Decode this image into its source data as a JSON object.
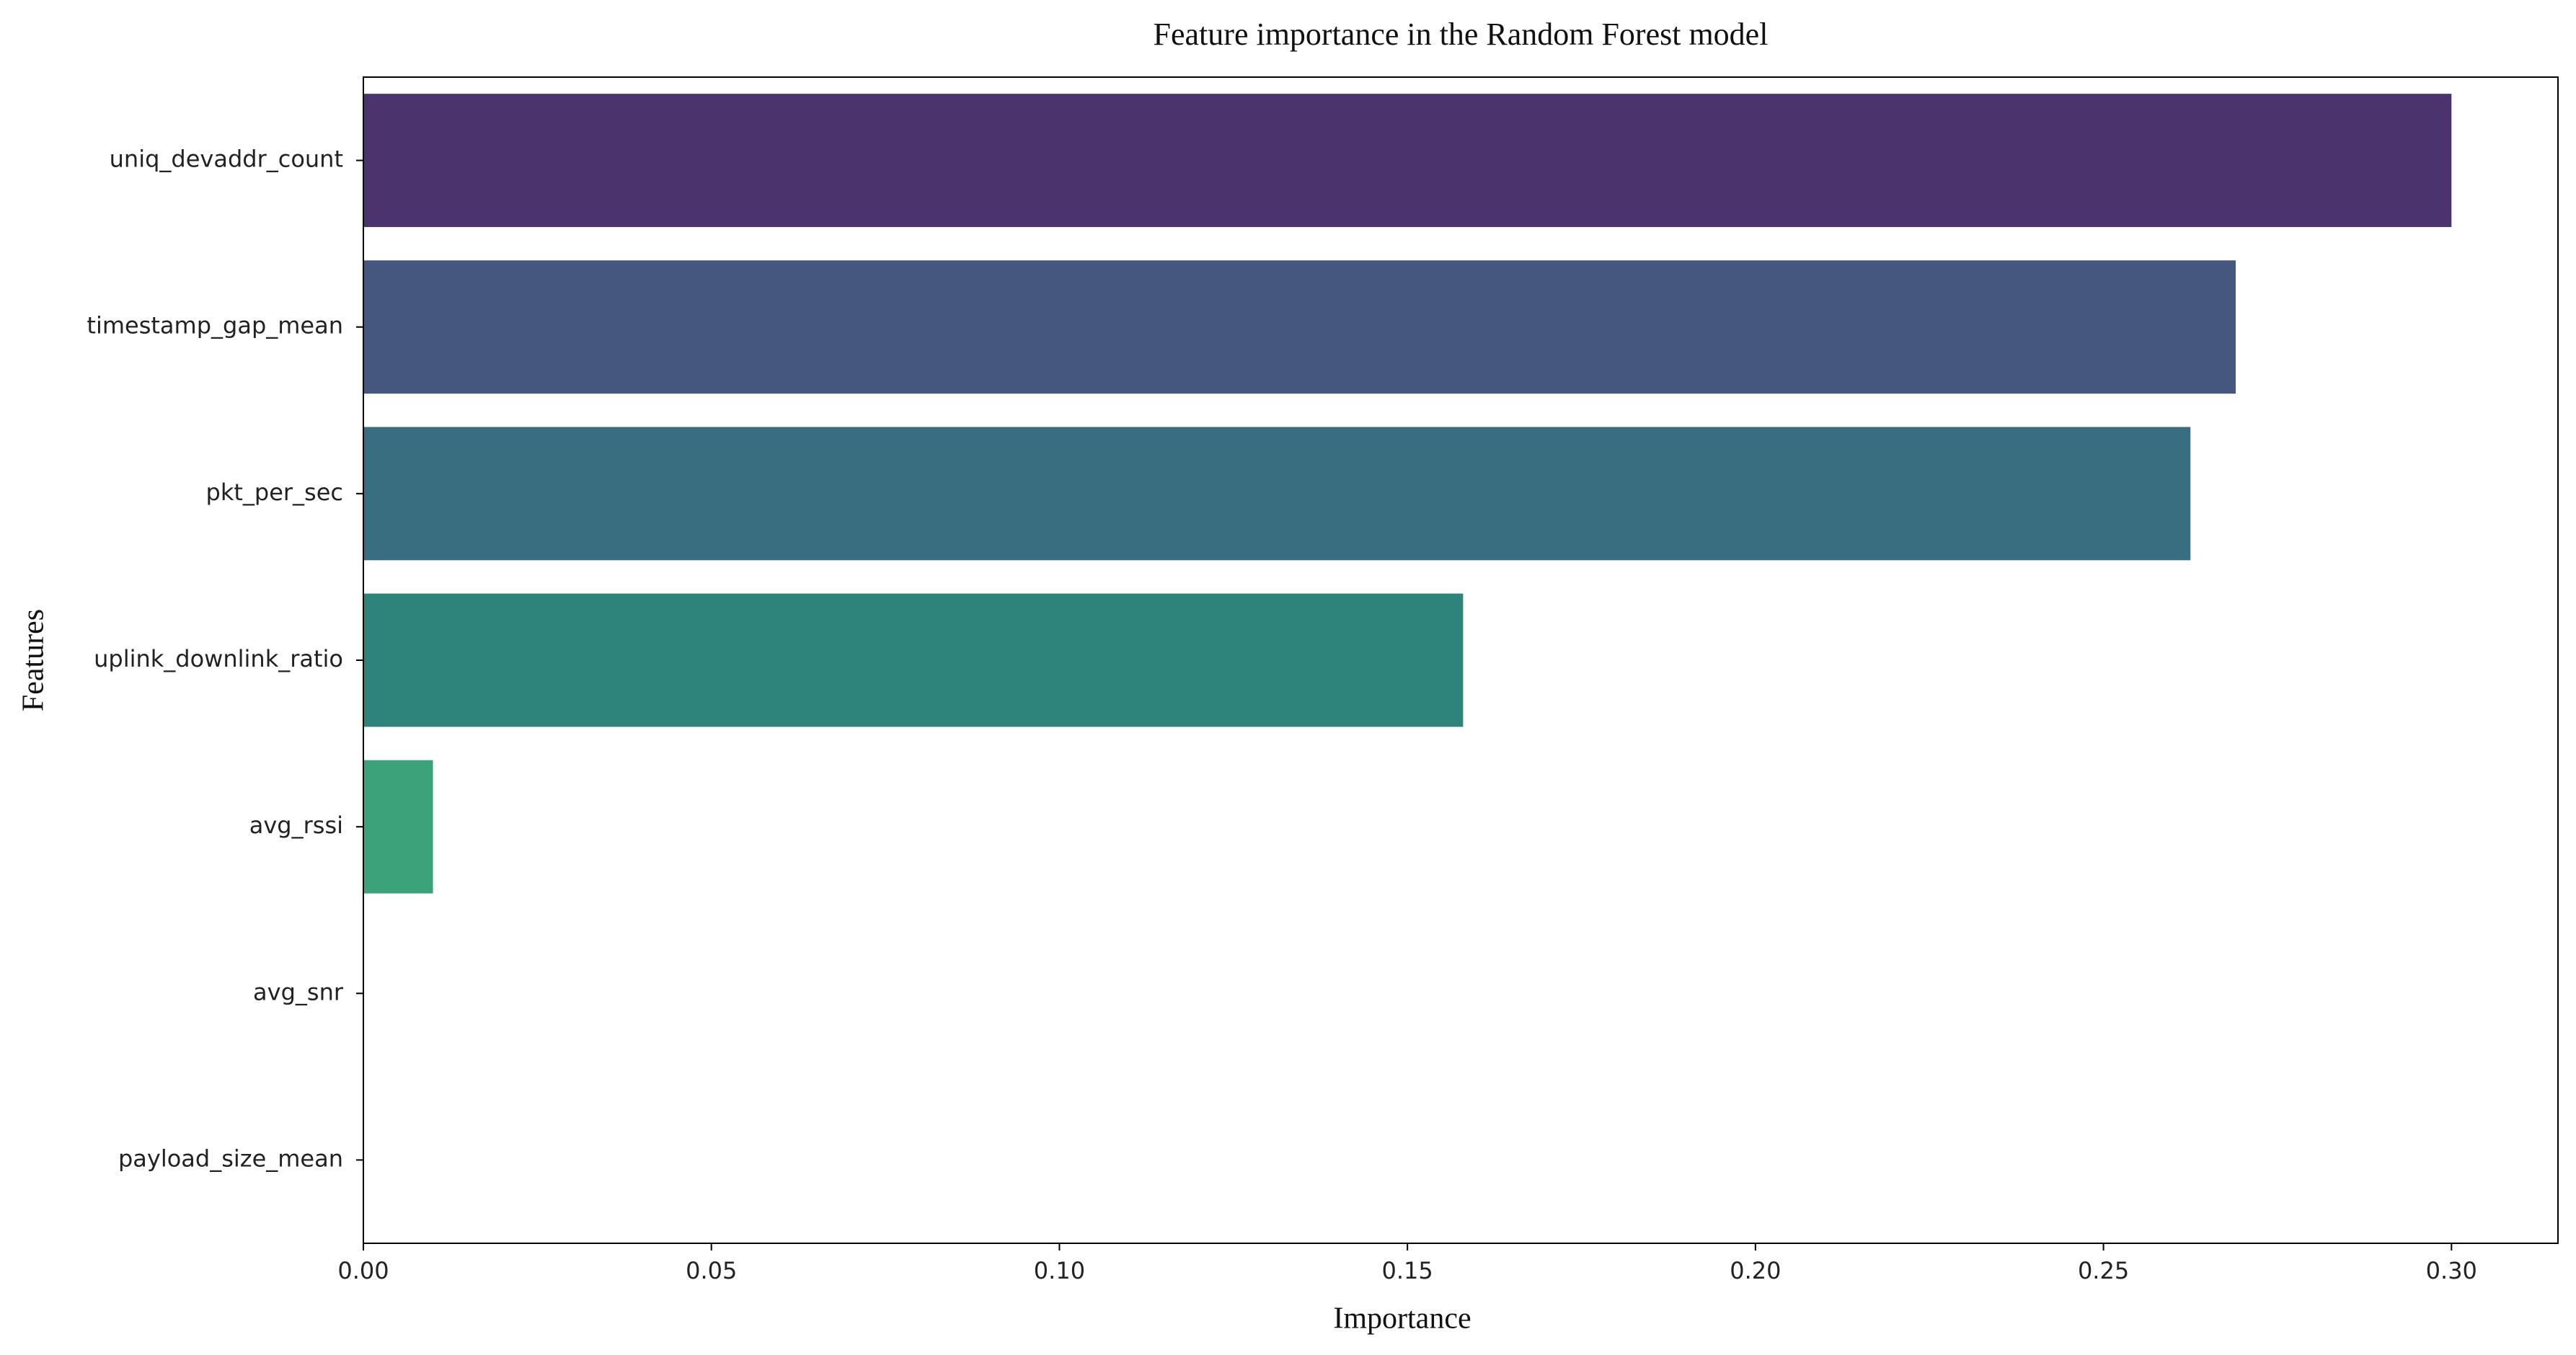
{
  "chart_data": {
    "type": "hbar",
    "title": "Feature importance in the Random Forest model",
    "xlabel": "Importance",
    "ylabel": "Features",
    "categories": [
      "uniq_devaddr_count",
      "timestamp_gap_mean",
      "pkt_per_sec",
      "uplink_downlink_ratio",
      "avg_rssi",
      "avg_snr",
      "payload_size_mean"
    ],
    "values": [
      0.3,
      0.269,
      0.2625,
      0.158,
      0.01,
      0,
      0
    ],
    "colors": [
      "#4b336e",
      "#46577f",
      "#396e80",
      "#2e837a",
      "#3ba27a",
      "#67b96a",
      "#9ccc5c"
    ],
    "xlim": [
      0,
      0.3153
    ],
    "xticks": [
      {
        "value": 0,
        "label": "0.00"
      },
      {
        "value": 0.05,
        "label": "0.05"
      },
      {
        "value": 0.1,
        "label": "0.10"
      },
      {
        "value": 0.15,
        "label": "0.15"
      },
      {
        "value": 0.2,
        "label": "0.20"
      },
      {
        "value": 0.25,
        "label": "0.25"
      },
      {
        "value": 0.3,
        "label": "0.30"
      }
    ]
  }
}
